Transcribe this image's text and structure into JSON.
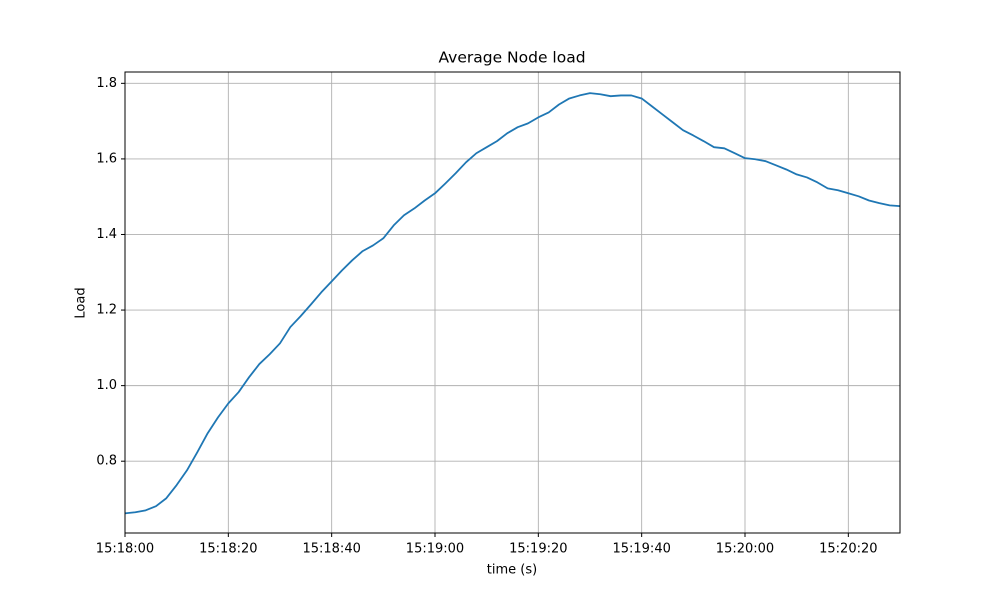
{
  "chart_data": {
    "type": "line",
    "title": "Average Node load",
    "x_label": "time (s)",
    "y_label": "Load",
    "x": [
      "15:18:00",
      "15:18:02",
      "15:18:04",
      "15:18:06",
      "15:18:08",
      "15:18:10",
      "15:18:12",
      "15:18:14",
      "15:18:16",
      "15:18:18",
      "15:18:20",
      "15:18:22",
      "15:18:24",
      "15:18:26",
      "15:18:28",
      "15:18:30",
      "15:18:32",
      "15:18:34",
      "15:18:36",
      "15:18:38",
      "15:18:40",
      "15:18:42",
      "15:18:44",
      "15:18:46",
      "15:18:48",
      "15:18:50",
      "15:18:52",
      "15:18:54",
      "15:18:56",
      "15:18:58",
      "15:19:00",
      "15:19:02",
      "15:19:04",
      "15:19:06",
      "15:19:08",
      "15:19:10",
      "15:19:12",
      "15:19:14",
      "15:19:16",
      "15:19:18",
      "15:19:20",
      "15:19:22",
      "15:19:24",
      "15:19:26",
      "15:19:28",
      "15:19:30",
      "15:19:32",
      "15:19:34",
      "15:19:36",
      "15:19:38",
      "15:19:40",
      "15:19:42",
      "15:19:44",
      "15:19:46",
      "15:19:48",
      "15:19:50",
      "15:19:52",
      "15:19:54",
      "15:19:56",
      "15:19:58",
      "15:20:00",
      "15:20:02",
      "15:20:04",
      "15:20:06",
      "15:20:08",
      "15:20:10",
      "15:20:12",
      "15:20:14",
      "15:20:16",
      "15:20:18",
      "15:20:20",
      "15:20:22",
      "15:20:24",
      "15:20:26",
      "15:20:28",
      "15:20:30"
    ],
    "series": [
      {
        "color": "#1f77b4",
        "values": [
          0.662,
          0.665,
          0.67,
          0.681,
          0.702,
          0.737,
          0.776,
          0.824,
          0.874,
          0.916,
          0.953,
          0.983,
          1.022,
          1.057,
          1.083,
          1.112,
          1.155,
          1.184,
          1.215,
          1.247,
          1.276,
          1.305,
          1.332,
          1.356,
          1.371,
          1.39,
          1.424,
          1.451,
          1.469,
          1.49,
          1.509,
          1.535,
          1.562,
          1.591,
          1.615,
          1.631,
          1.647,
          1.668,
          1.684,
          1.694,
          1.71,
          1.723,
          1.744,
          1.76,
          1.768,
          1.774,
          1.771,
          1.766,
          1.768,
          1.768,
          1.76,
          1.739,
          1.718,
          1.697,
          1.676,
          1.662,
          1.647,
          1.631,
          1.628,
          1.615,
          1.602,
          1.599,
          1.594,
          1.583,
          1.572,
          1.559,
          1.551,
          1.538,
          1.522,
          1.517,
          1.509,
          1.501,
          1.49,
          1.483,
          1.477,
          1.475
        ]
      }
    ],
    "xlim": [
      "15:18:00",
      "15:20:30"
    ],
    "xticks": [
      "15:18:00",
      "15:18:20",
      "15:18:40",
      "15:19:00",
      "15:19:20",
      "15:19:40",
      "15:20:00",
      "15:20:20"
    ],
    "ylim": [
      0.61,
      1.83
    ],
    "yticks": [
      0.8,
      {
        "value": 1.0,
        "label": "1.0"
      },
      1.2,
      1.4,
      1.6,
      1.8
    ],
    "grid": true
  }
}
